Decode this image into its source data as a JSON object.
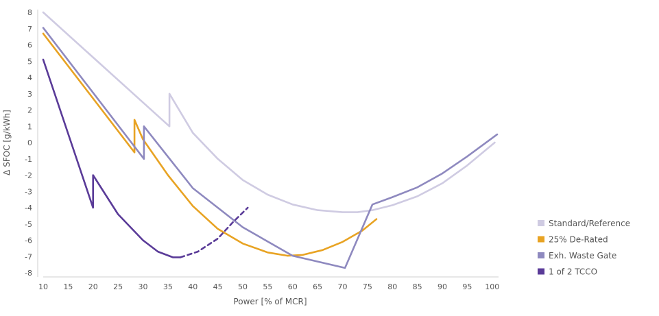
{
  "chart_data": {
    "type": "line",
    "xlabel": "Power [% of MCR]",
    "ylabel": "Δ SFOC [g/kWh]",
    "xlim": [
      10,
      101
    ],
    "ylim": [
      -8,
      8
    ],
    "x_ticks": [
      10,
      15,
      20,
      25,
      30,
      35,
      40,
      45,
      50,
      55,
      60,
      65,
      70,
      75,
      80,
      85,
      90,
      95,
      100
    ],
    "y_ticks": [
      8,
      7,
      6,
      5,
      4,
      3,
      2,
      1,
      0,
      -1,
      -2,
      -3,
      -4,
      -5,
      -6,
      -7,
      -8
    ],
    "grid": false,
    "legend_position": "bottom-right",
    "series": [
      {
        "name": "Standard/Reference",
        "color": "#cfcbe2",
        "segments": [
          {
            "style": "solid",
            "points": [
              [
                10,
                8.0
              ],
              [
                35.3,
                1.0
              ],
              [
                35.3,
                3.0
              ],
              [
                40,
                0.6
              ],
              [
                45,
                -1.0
              ],
              [
                50,
                -2.3
              ],
              [
                55,
                -3.2
              ],
              [
                60,
                -3.8
              ],
              [
                65,
                -4.15
              ],
              [
                70,
                -4.28
              ],
              [
                73,
                -4.28
              ],
              [
                76,
                -4.15
              ],
              [
                80,
                -3.85
              ],
              [
                85,
                -3.3
              ],
              [
                90,
                -2.5
              ],
              [
                95,
                -1.4
              ],
              [
                100.5,
                0.0
              ]
            ]
          }
        ]
      },
      {
        "name": "25% De-Rated",
        "color": "#e8a323",
        "segments": [
          {
            "style": "solid",
            "points": [
              [
                10,
                6.7
              ],
              [
                28.3,
                -0.6
              ],
              [
                28.3,
                1.4
              ],
              [
                30,
                0.2
              ],
              [
                35,
                -2.0
              ],
              [
                40,
                -3.9
              ],
              [
                45,
                -5.3
              ],
              [
                50,
                -6.2
              ],
              [
                55,
                -6.75
              ],
              [
                59,
                -6.95
              ],
              [
                62,
                -6.9
              ],
              [
                66,
                -6.6
              ],
              [
                70,
                -6.1
              ],
              [
                74,
                -5.4
              ],
              [
                76.8,
                -4.7
              ]
            ]
          }
        ]
      },
      {
        "name": "Exh. Waste Gate",
        "color": "#8e89bf",
        "segments": [
          {
            "style": "solid",
            "points": [
              [
                10,
                7.05
              ],
              [
                30.2,
                -1.0
              ],
              [
                30.2,
                1.0
              ],
              [
                40,
                -2.8
              ],
              [
                50,
                -5.2
              ],
              [
                60,
                -6.95
              ],
              [
                70.5,
                -7.7
              ],
              [
                76,
                -3.8
              ],
              [
                80,
                -3.35
              ],
              [
                85,
                -2.75
              ],
              [
                90,
                -1.9
              ],
              [
                95,
                -0.85
              ],
              [
                101,
                0.5
              ]
            ]
          }
        ]
      },
      {
        "name": "1 of 2 TCCO",
        "color": "#5a3b98",
        "segments": [
          {
            "style": "solid",
            "points": [
              [
                10,
                5.1
              ],
              [
                20,
                -4.0
              ],
              [
                20,
                -2.0
              ],
              [
                25,
                -4.4
              ],
              [
                30,
                -6.0
              ],
              [
                33,
                -6.7
              ],
              [
                36,
                -7.05
              ],
              [
                37.5,
                -7.05
              ]
            ]
          },
          {
            "style": "dashed",
            "points": [
              [
                37.5,
                -7.05
              ],
              [
                41,
                -6.7
              ],
              [
                45,
                -5.9
              ],
              [
                48,
                -4.9
              ],
              [
                51,
                -4.0
              ]
            ]
          }
        ]
      }
    ]
  }
}
